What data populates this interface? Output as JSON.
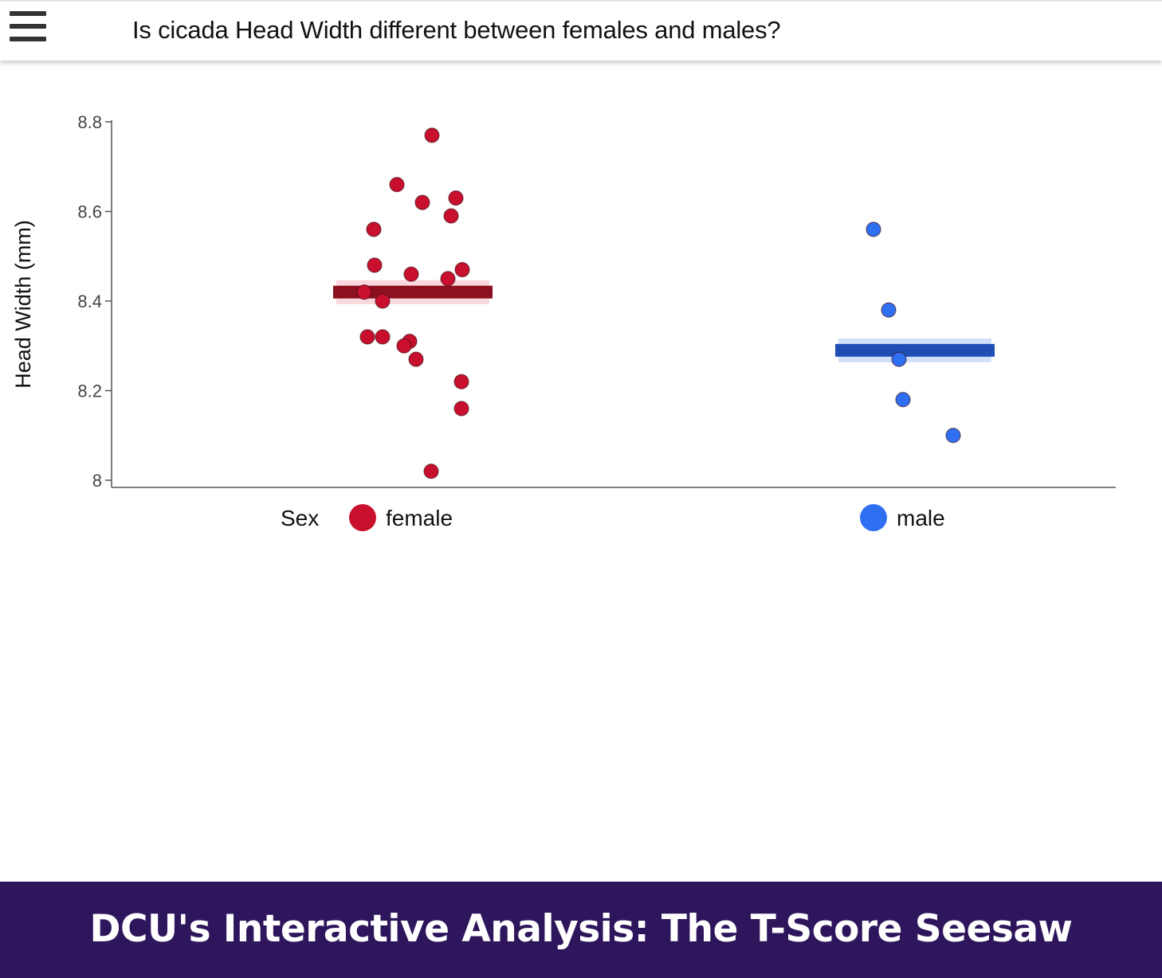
{
  "header": {
    "title": "Is cicada Head Width different between females and males?",
    "menu_icon": "hamburger-menu-icon"
  },
  "footer": {
    "text": "DCU's Interactive Analysis: The T-Score Seesaw",
    "background": "#2e165c"
  },
  "chart_data": {
    "type": "scatter",
    "title": "",
    "xlabel": "",
    "ylabel": "Head Width (mm)",
    "ylim": [
      8.0,
      8.8
    ],
    "yticks": [
      8,
      8.2,
      8.4,
      8.6,
      8.8
    ],
    "ytick_labels": [
      "8",
      "8.2",
      "8.4",
      "8.6",
      "8.8"
    ],
    "grid": false,
    "legend": {
      "title": "Sex",
      "placement": "bottom",
      "entries": [
        "female",
        "male"
      ]
    },
    "categories": [
      "female",
      "male"
    ],
    "series": [
      {
        "name": "female",
        "color": "#c8102e",
        "mean_color": "#8b1020",
        "band_color": "#f4b6c0",
        "mean": 8.42,
        "values": [
          8.77,
          8.66,
          8.62,
          8.63,
          8.59,
          8.56,
          8.48,
          8.46,
          8.47,
          8.45,
          8.42,
          8.4,
          8.32,
          8.32,
          8.31,
          8.3,
          8.27,
          8.22,
          8.16,
          8.02
        ]
      },
      {
        "name": "male",
        "color": "#2f6ff2",
        "mean_color": "#1f4fb5",
        "band_color": "#a9c6f7",
        "mean": 8.29,
        "values": [
          8.56,
          8.38,
          8.27,
          8.18,
          8.1
        ]
      }
    ]
  }
}
